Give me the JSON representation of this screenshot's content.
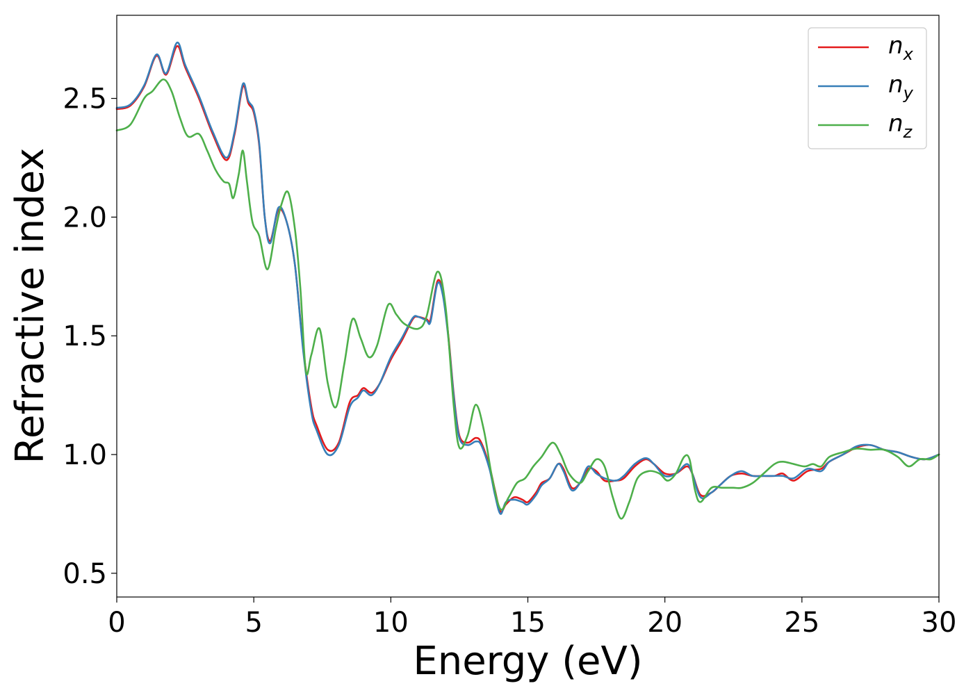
{
  "chart_data": {
    "type": "line",
    "title": "",
    "xlabel": "Energy (eV)",
    "ylabel": "Refractive index",
    "xlim": [
      0,
      30
    ],
    "ylim": [
      0.4,
      2.85
    ],
    "xticks": [
      0,
      5,
      10,
      15,
      20,
      25,
      30
    ],
    "xtick_labels": [
      "0",
      "5",
      "10",
      "15",
      "20",
      "25",
      "30"
    ],
    "yticks": [
      0.5,
      1.0,
      1.5,
      2.0,
      2.5
    ],
    "ytick_labels": [
      "0.5",
      "1.0",
      "1.5",
      "2.0",
      "2.5"
    ],
    "grid": false,
    "legend_position": "top-right",
    "series": [
      {
        "name": "n_x",
        "label_base": "n",
        "label_sub": "x",
        "color": "#e41a1c",
        "points": [
          [
            0,
            2.455
          ],
          [
            0.5,
            2.47
          ],
          [
            1.0,
            2.55
          ],
          [
            1.45,
            2.68
          ],
          [
            1.8,
            2.6
          ],
          [
            2.2,
            2.72
          ],
          [
            2.5,
            2.63
          ],
          [
            3.0,
            2.5
          ],
          [
            3.5,
            2.35
          ],
          [
            4.0,
            2.24
          ],
          [
            4.3,
            2.35
          ],
          [
            4.6,
            2.55
          ],
          [
            4.8,
            2.48
          ],
          [
            5.0,
            2.44
          ],
          [
            5.2,
            2.3
          ],
          [
            5.4,
            2.0
          ],
          [
            5.6,
            1.9
          ],
          [
            5.9,
            2.03
          ],
          [
            6.2,
            1.98
          ],
          [
            6.5,
            1.8
          ],
          [
            6.8,
            1.45
          ],
          [
            7.1,
            1.2
          ],
          [
            7.3,
            1.12
          ],
          [
            7.7,
            1.02
          ],
          [
            8.1,
            1.05
          ],
          [
            8.5,
            1.22
          ],
          [
            8.8,
            1.25
          ],
          [
            9.0,
            1.28
          ],
          [
            9.3,
            1.26
          ],
          [
            9.6,
            1.3
          ],
          [
            10.0,
            1.4
          ],
          [
            10.4,
            1.48
          ],
          [
            10.8,
            1.57
          ],
          [
            11.0,
            1.58
          ],
          [
            11.3,
            1.57
          ],
          [
            11.45,
            1.57
          ],
          [
            11.7,
            1.73
          ],
          [
            11.9,
            1.68
          ],
          [
            12.1,
            1.5
          ],
          [
            12.3,
            1.25
          ],
          [
            12.5,
            1.08
          ],
          [
            12.8,
            1.05
          ],
          [
            13.1,
            1.07
          ],
          [
            13.3,
            1.05
          ],
          [
            13.6,
            0.95
          ],
          [
            13.8,
            0.85
          ],
          [
            14.0,
            0.76
          ],
          [
            14.2,
            0.79
          ],
          [
            14.5,
            0.82
          ],
          [
            14.8,
            0.81
          ],
          [
            15.0,
            0.8
          ],
          [
            15.3,
            0.84
          ],
          [
            15.5,
            0.88
          ],
          [
            15.8,
            0.9
          ],
          [
            16.1,
            0.96
          ],
          [
            16.3,
            0.94
          ],
          [
            16.6,
            0.86
          ],
          [
            16.9,
            0.88
          ],
          [
            17.2,
            0.94
          ],
          [
            17.5,
            0.93
          ],
          [
            17.8,
            0.89
          ],
          [
            18.2,
            0.89
          ],
          [
            18.5,
            0.9
          ],
          [
            18.9,
            0.95
          ],
          [
            19.3,
            0.98
          ],
          [
            19.6,
            0.96
          ],
          [
            20.0,
            0.92
          ],
          [
            20.4,
            0.92
          ],
          [
            20.8,
            0.95
          ],
          [
            21.0,
            0.92
          ],
          [
            21.3,
            0.83
          ],
          [
            21.7,
            0.84
          ],
          [
            22.0,
            0.87
          ],
          [
            22.4,
            0.91
          ],
          [
            22.8,
            0.92
          ],
          [
            23.2,
            0.91
          ],
          [
            23.6,
            0.91
          ],
          [
            24.0,
            0.91
          ],
          [
            24.3,
            0.92
          ],
          [
            24.7,
            0.89
          ],
          [
            25.2,
            0.93
          ],
          [
            25.7,
            0.94
          ],
          [
            26.0,
            0.97
          ],
          [
            26.5,
            1.0
          ],
          [
            27.0,
            1.03
          ],
          [
            27.5,
            1.04
          ],
          [
            28.0,
            1.02
          ],
          [
            28.5,
            1.01
          ],
          [
            29.0,
            0.99
          ],
          [
            29.5,
            0.98
          ],
          [
            30.0,
            1.0
          ]
        ]
      },
      {
        "name": "n_y",
        "label_base": "n",
        "label_sub": "y",
        "color": "#377eb8",
        "points": [
          [
            0,
            2.46
          ],
          [
            0.5,
            2.475
          ],
          [
            1.0,
            2.555
          ],
          [
            1.45,
            2.685
          ],
          [
            1.8,
            2.605
          ],
          [
            2.2,
            2.735
          ],
          [
            2.5,
            2.64
          ],
          [
            3.0,
            2.51
          ],
          [
            3.5,
            2.36
          ],
          [
            4.0,
            2.25
          ],
          [
            4.3,
            2.36
          ],
          [
            4.6,
            2.56
          ],
          [
            4.8,
            2.49
          ],
          [
            5.0,
            2.45
          ],
          [
            5.2,
            2.31
          ],
          [
            5.4,
            2.0
          ],
          [
            5.6,
            1.89
          ],
          [
            5.9,
            2.04
          ],
          [
            6.2,
            1.98
          ],
          [
            6.5,
            1.8
          ],
          [
            6.8,
            1.44
          ],
          [
            7.1,
            1.18
          ],
          [
            7.3,
            1.1
          ],
          [
            7.7,
            1.0
          ],
          [
            8.1,
            1.04
          ],
          [
            8.5,
            1.2
          ],
          [
            8.8,
            1.24
          ],
          [
            9.0,
            1.27
          ],
          [
            9.3,
            1.25
          ],
          [
            9.6,
            1.3
          ],
          [
            10.0,
            1.41
          ],
          [
            10.4,
            1.49
          ],
          [
            10.8,
            1.575
          ],
          [
            11.0,
            1.58
          ],
          [
            11.3,
            1.565
          ],
          [
            11.45,
            1.56
          ],
          [
            11.7,
            1.72
          ],
          [
            11.9,
            1.67
          ],
          [
            12.1,
            1.49
          ],
          [
            12.3,
            1.24
          ],
          [
            12.5,
            1.07
          ],
          [
            12.8,
            1.04
          ],
          [
            13.1,
            1.055
          ],
          [
            13.3,
            1.04
          ],
          [
            13.6,
            0.94
          ],
          [
            13.8,
            0.83
          ],
          [
            14.0,
            0.75
          ],
          [
            14.2,
            0.8
          ],
          [
            14.5,
            0.81
          ],
          [
            14.8,
            0.8
          ],
          [
            15.0,
            0.79
          ],
          [
            15.3,
            0.83
          ],
          [
            15.5,
            0.87
          ],
          [
            15.8,
            0.9
          ],
          [
            16.1,
            0.96
          ],
          [
            16.3,
            0.93
          ],
          [
            16.6,
            0.85
          ],
          [
            16.9,
            0.88
          ],
          [
            17.2,
            0.95
          ],
          [
            17.5,
            0.92
          ],
          [
            17.8,
            0.9
          ],
          [
            18.2,
            0.89
          ],
          [
            18.5,
            0.91
          ],
          [
            18.9,
            0.96
          ],
          [
            19.3,
            0.985
          ],
          [
            19.6,
            0.96
          ],
          [
            20.0,
            0.91
          ],
          [
            20.4,
            0.92
          ],
          [
            20.8,
            0.96
          ],
          [
            21.0,
            0.92
          ],
          [
            21.3,
            0.82
          ],
          [
            21.7,
            0.84
          ],
          [
            22.0,
            0.87
          ],
          [
            22.4,
            0.91
          ],
          [
            22.8,
            0.93
          ],
          [
            23.2,
            0.91
          ],
          [
            23.6,
            0.91
          ],
          [
            24.0,
            0.91
          ],
          [
            24.3,
            0.91
          ],
          [
            24.7,
            0.9
          ],
          [
            25.2,
            0.94
          ],
          [
            25.7,
            0.93
          ],
          [
            26.0,
            0.97
          ],
          [
            26.5,
            1.0
          ],
          [
            27.0,
            1.035
          ],
          [
            27.5,
            1.04
          ],
          [
            28.0,
            1.02
          ],
          [
            28.5,
            1.01
          ],
          [
            29.0,
            0.99
          ],
          [
            29.5,
            0.98
          ],
          [
            30.0,
            1.0
          ]
        ]
      },
      {
        "name": "n_z",
        "label_base": "n",
        "label_sub": "z",
        "color": "#4daf4a",
        "points": [
          [
            0,
            2.365
          ],
          [
            0.5,
            2.39
          ],
          [
            1.0,
            2.5
          ],
          [
            1.3,
            2.53
          ],
          [
            1.7,
            2.58
          ],
          [
            2.0,
            2.53
          ],
          [
            2.3,
            2.42
          ],
          [
            2.6,
            2.34
          ],
          [
            3.0,
            2.35
          ],
          [
            3.3,
            2.28
          ],
          [
            3.6,
            2.2
          ],
          [
            3.9,
            2.15
          ],
          [
            4.1,
            2.14
          ],
          [
            4.25,
            2.08
          ],
          [
            4.45,
            2.18
          ],
          [
            4.6,
            2.28
          ],
          [
            4.75,
            2.15
          ],
          [
            4.95,
            1.98
          ],
          [
            5.2,
            1.92
          ],
          [
            5.5,
            1.78
          ],
          [
            5.8,
            1.95
          ],
          [
            6.0,
            2.05
          ],
          [
            6.25,
            2.105
          ],
          [
            6.5,
            1.95
          ],
          [
            6.7,
            1.7
          ],
          [
            6.9,
            1.35
          ],
          [
            7.1,
            1.42
          ],
          [
            7.4,
            1.53
          ],
          [
            7.7,
            1.3
          ],
          [
            8.0,
            1.2
          ],
          [
            8.3,
            1.38
          ],
          [
            8.6,
            1.57
          ],
          [
            8.9,
            1.49
          ],
          [
            9.2,
            1.41
          ],
          [
            9.5,
            1.46
          ],
          [
            9.9,
            1.63
          ],
          [
            10.2,
            1.59
          ],
          [
            10.5,
            1.55
          ],
          [
            11.0,
            1.53
          ],
          [
            11.3,
            1.58
          ],
          [
            11.7,
            1.77
          ],
          [
            12.0,
            1.62
          ],
          [
            12.3,
            1.2
          ],
          [
            12.5,
            1.03
          ],
          [
            12.8,
            1.08
          ],
          [
            13.1,
            1.21
          ],
          [
            13.4,
            1.1
          ],
          [
            13.7,
            0.9
          ],
          [
            14.0,
            0.77
          ],
          [
            14.3,
            0.82
          ],
          [
            14.6,
            0.88
          ],
          [
            14.9,
            0.9
          ],
          [
            15.2,
            0.95
          ],
          [
            15.5,
            0.99
          ],
          [
            15.9,
            1.05
          ],
          [
            16.2,
            1.0
          ],
          [
            16.5,
            0.92
          ],
          [
            16.9,
            0.88
          ],
          [
            17.2,
            0.93
          ],
          [
            17.5,
            0.98
          ],
          [
            17.8,
            0.95
          ],
          [
            18.1,
            0.82
          ],
          [
            18.4,
            0.73
          ],
          [
            18.7,
            0.8
          ],
          [
            19.0,
            0.9
          ],
          [
            19.4,
            0.93
          ],
          [
            19.8,
            0.92
          ],
          [
            20.1,
            0.89
          ],
          [
            20.4,
            0.92
          ],
          [
            20.7,
            0.99
          ],
          [
            20.9,
            0.98
          ],
          [
            21.1,
            0.85
          ],
          [
            21.3,
            0.8
          ],
          [
            21.7,
            0.86
          ],
          [
            22.1,
            0.86
          ],
          [
            22.5,
            0.86
          ],
          [
            22.8,
            0.86
          ],
          [
            23.2,
            0.88
          ],
          [
            23.6,
            0.92
          ],
          [
            24.0,
            0.96
          ],
          [
            24.3,
            0.97
          ],
          [
            24.7,
            0.96
          ],
          [
            25.1,
            0.95
          ],
          [
            25.4,
            0.96
          ],
          [
            25.7,
            0.95
          ],
          [
            26.0,
            0.99
          ],
          [
            26.5,
            1.01
          ],
          [
            27.0,
            1.025
          ],
          [
            27.5,
            1.02
          ],
          [
            28.0,
            1.02
          ],
          [
            28.5,
            0.99
          ],
          [
            28.9,
            0.95
          ],
          [
            29.3,
            0.98
          ],
          [
            29.7,
            0.98
          ],
          [
            30.0,
            1.0
          ]
        ]
      }
    ]
  }
}
